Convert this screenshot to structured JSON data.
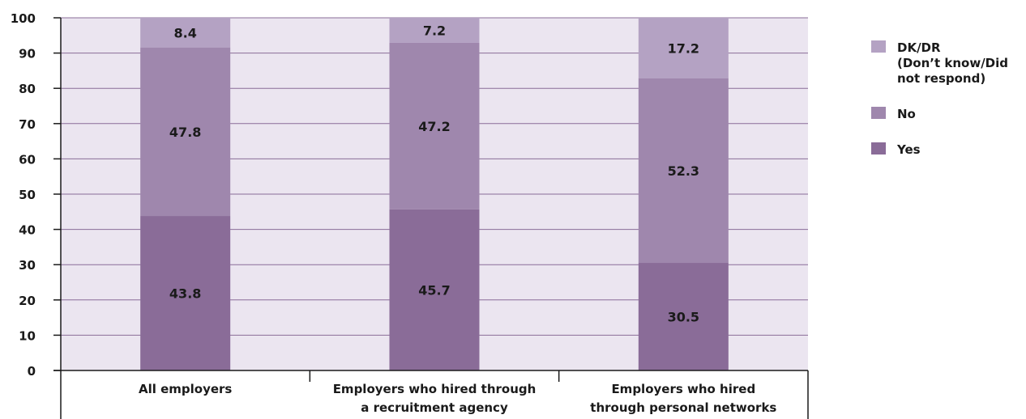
{
  "chart_data": {
    "type": "bar",
    "stacked": true,
    "orientation": "vertical",
    "categories": [
      [
        "All employers"
      ],
      [
        "Employers who hired through",
        "a recruitment agency"
      ],
      [
        "Employers who hired",
        "through personal networks"
      ]
    ],
    "series": [
      {
        "name": "Yes",
        "values": [
          43.8,
          45.7,
          30.5
        ],
        "color": "#8a6c98"
      },
      {
        "name": "No",
        "values": [
          47.8,
          47.2,
          52.3
        ],
        "color": "#9f87ad"
      },
      {
        "name": "DK/DR (Don’t know/Did not respond)",
        "legend_lines": [
          "DK/DR",
          "(Don’t know/Did",
          "not respond)"
        ],
        "values": [
          8.4,
          7.2,
          17.2
        ],
        "color": "#b4a2c3"
      }
    ],
    "ylim": [
      0,
      100
    ],
    "yticks": [
      0,
      10,
      20,
      30,
      40,
      50,
      60,
      70,
      80,
      90,
      100
    ],
    "legend_order": [
      "DK/DR (Don’t know/Did not respond)",
      "No",
      "Yes"
    ],
    "legend_position": "right",
    "grid": true,
    "plot_background": "#ebe5f0",
    "grid_color": "#8a6c98"
  }
}
